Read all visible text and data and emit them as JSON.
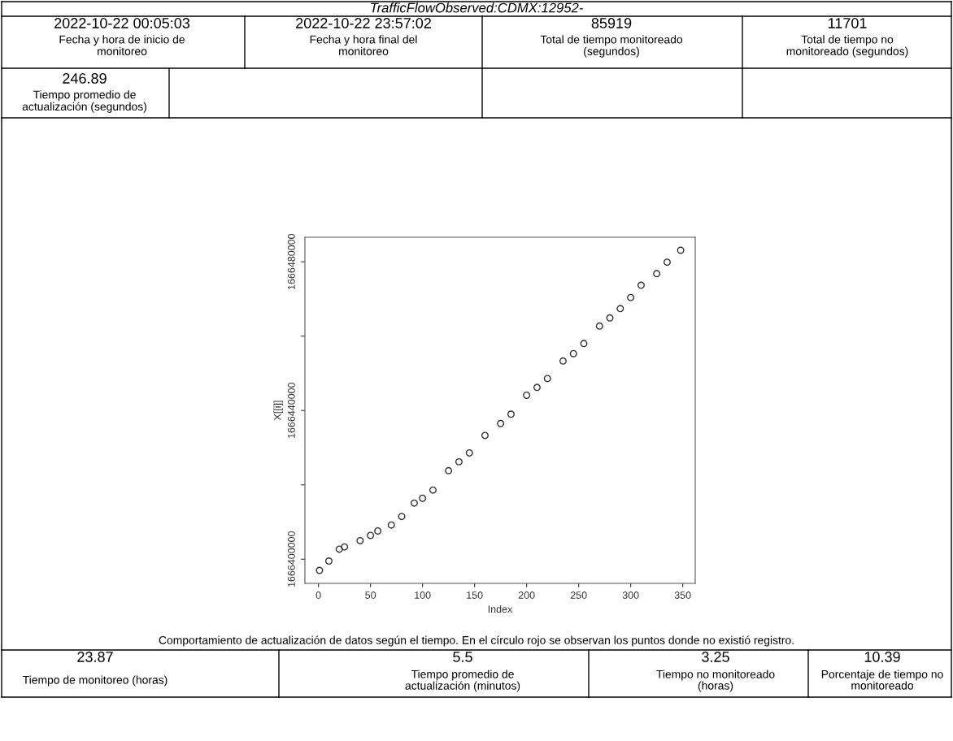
{
  "chart_data": {
    "type": "scatter",
    "title": "TrafficFlowObserved:CDMX:12952-",
    "xlabel": "Index",
    "ylabel": "X[[i]]",
    "x": [
      1,
      10,
      20,
      25,
      40,
      50,
      57,
      70,
      80,
      92,
      100,
      110,
      125,
      135,
      145,
      160,
      175,
      185,
      200,
      210,
      220,
      235,
      245,
      255,
      270,
      280,
      290,
      300,
      310,
      325,
      335,
      348
    ],
    "series": [
      {
        "color": "#333333",
        "values": [
          1666397000,
          1666399500,
          1666402700,
          1666403300,
          1666405000,
          1666406400,
          1666407600,
          1666409200,
          1666411500,
          1666415100,
          1666416400,
          1666418600,
          1666423800,
          1666426200,
          1666428600,
          1666433300,
          1666436500,
          1666439000,
          1666444100,
          1666446200,
          1666448600,
          1666453300,
          1666455300,
          1666458000,
          1666462700,
          1666464900,
          1666467400,
          1666470400,
          1666473700,
          1666476800,
          1666479900,
          1666483100
        ]
      }
    ],
    "marker": "circle",
    "xlim": [
      -13,
      362
    ],
    "xticks": [
      0,
      50,
      100,
      150,
      200,
      250,
      300,
      350
    ],
    "ylim": [
      1666393500,
      1666486600
    ],
    "yticks": [
      1666400000,
      {
        "value": 1666420000,
        "label": null
      },
      1666440000,
      {
        "value": 1666460000,
        "label": null
      },
      1666480000
    ],
    "grid": false,
    "annotations": [
      "2022-10-22 00:05:03",
      "Fecha y hora de inicio de\nmonitoreo",
      "2022-10-22 23:57:02",
      "Fecha y hora final del\nmonitoreo",
      "85919",
      "Total de tiempo monitoreado\n(segundos)",
      "11701",
      "Total de tiempo no\nmonitoreado (segundos)",
      "246.89",
      "Tiempo promedio de\nactualización (segundos)",
      "Comportamiento de actualización de datos según el tiempo. En el círculo rojo se observan los puntos donde no existió registro.",
      "23.87",
      "Tiempo de monitoreo (horas)",
      "5.5",
      "Tiempo promedio de\nactualización (minutos)",
      "3.25",
      "Tiempo no monitoreado\n(horas)",
      "10.39",
      "Porcentaje de tiempo no\nmonitoreado"
    ]
  }
}
